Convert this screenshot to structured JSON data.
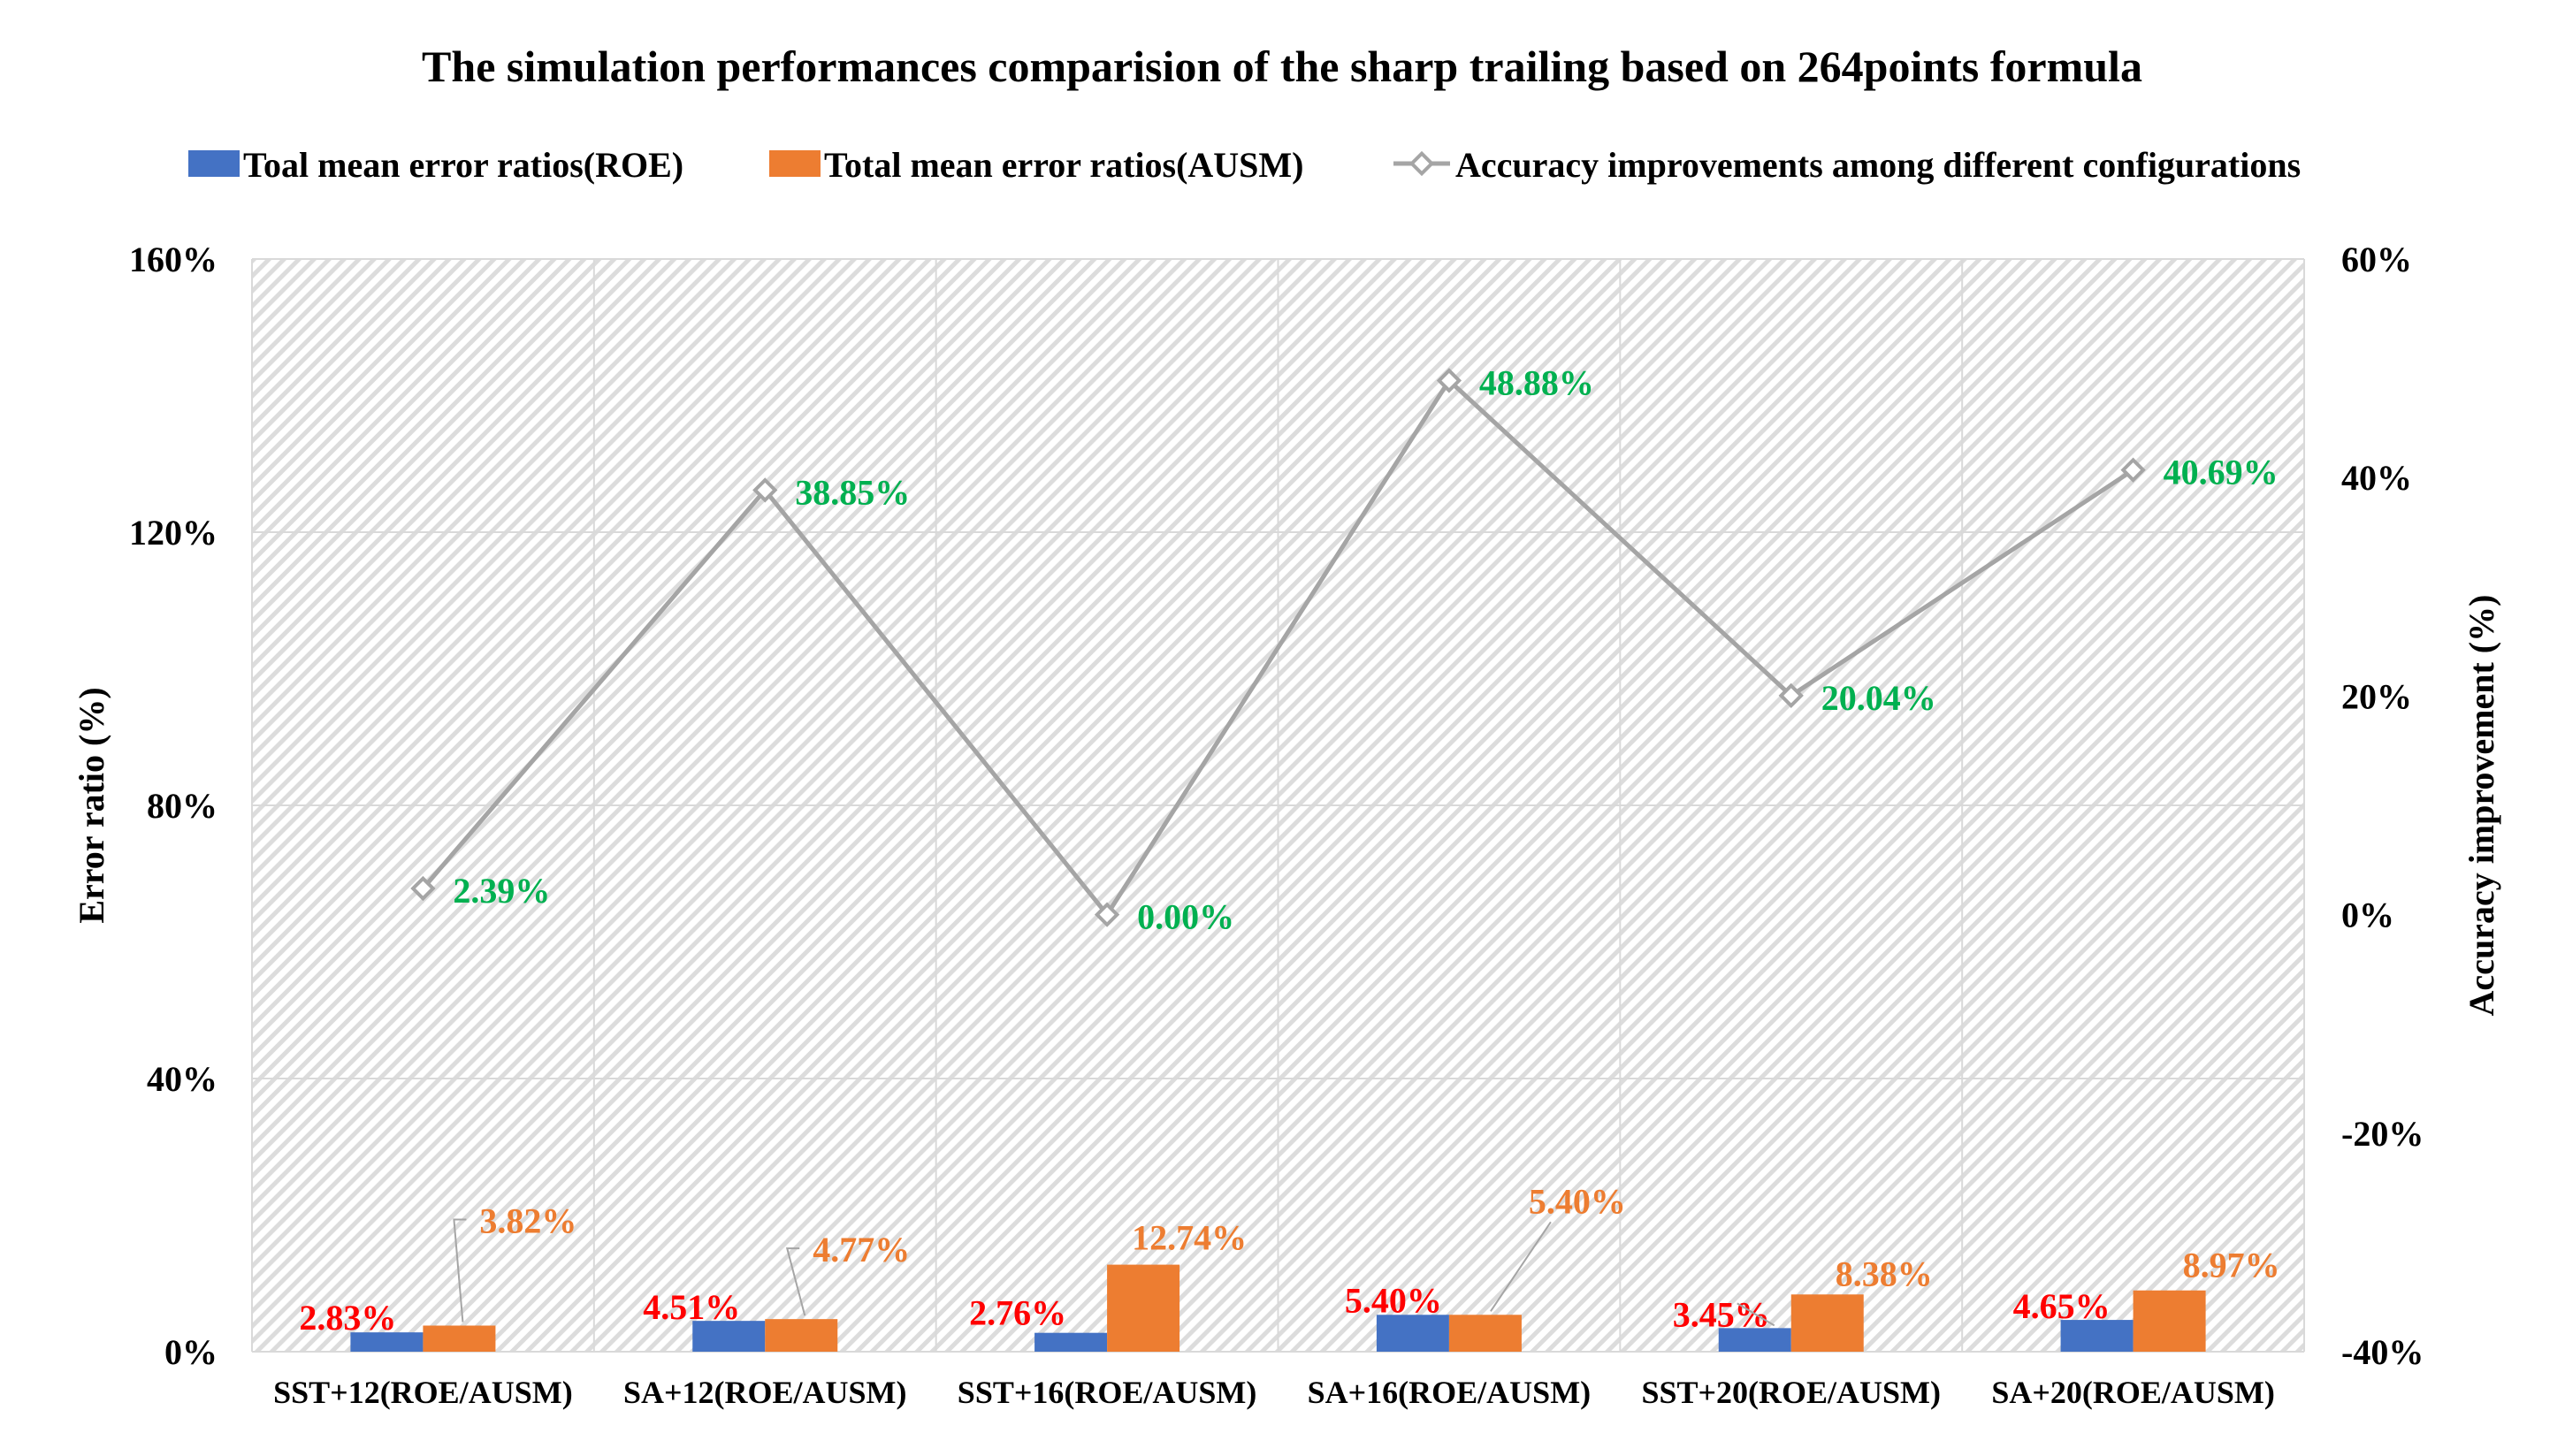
{
  "chart_data": {
    "type": "bar",
    "title": "The simulation performances comparision of the sharp trailing based on 264points formula",
    "categories": [
      "SST+12(ROE/AUSM)",
      "SA+12(ROE/AUSM)",
      "SST+16(ROE/AUSM)",
      "SA+16(ROE/AUSM)",
      "SST+20(ROE/AUSM)",
      "SA+20(ROE/AUSM)"
    ],
    "series": [
      {
        "name": "Toal mean error ratios(ROE)",
        "type": "bar",
        "axis": "left",
        "color": "#4472C4",
        "label_color": "#FF0000",
        "values": [
          2.83,
          4.51,
          2.76,
          5.4,
          3.45,
          4.65
        ],
        "labels": [
          "2.83%",
          "4.51%",
          "2.76%",
          "5.40%",
          "3.45%",
          "4.65%"
        ]
      },
      {
        "name": "Total mean error ratios(AUSM)",
        "type": "bar",
        "axis": "left",
        "color": "#ED7D31",
        "label_color": "#ED7D31",
        "values": [
          3.82,
          4.77,
          12.74,
          5.4,
          8.38,
          8.97
        ],
        "labels": [
          "3.82%",
          "4.77%",
          "12.74%",
          "5.40%",
          "8.38%",
          "8.97%"
        ]
      },
      {
        "name": "Accuracy improvements among different configurations",
        "type": "line",
        "axis": "right",
        "color": "#A5A5A5",
        "label_color": "#00B050",
        "values": [
          2.39,
          38.85,
          0.0,
          48.88,
          20.04,
          40.69
        ],
        "labels": [
          "2.39%",
          "38.85%",
          "0.00%",
          "48.88%",
          "20.04%",
          "40.69%"
        ]
      }
    ],
    "ylabel": "Error ratio (%)",
    "y2label": "Accuracy improvement (%)",
    "ylim": [
      0,
      160
    ],
    "y2lim": [
      -40,
      60
    ],
    "yticks": [
      "0%",
      "40%",
      "80%",
      "120%",
      "160%"
    ],
    "y2ticks": [
      "-40%",
      "-20%",
      "0%",
      "20%",
      "40%",
      "60%"
    ],
    "grid": true,
    "legend": "top"
  }
}
